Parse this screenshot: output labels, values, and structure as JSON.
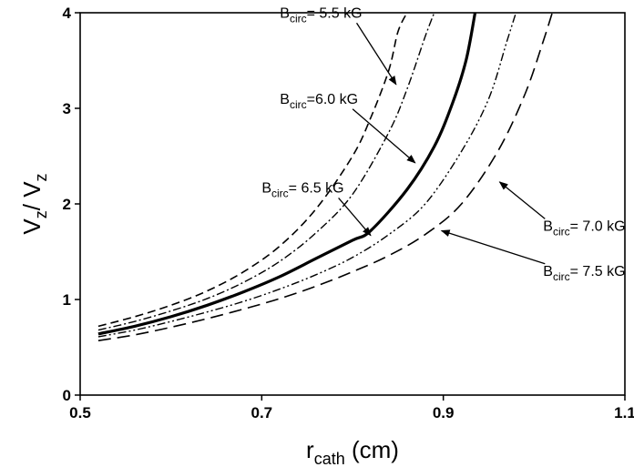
{
  "chart_data": {
    "type": "line",
    "title": "",
    "xlabel": {
      "main": "r",
      "sub": "cath",
      "unit": "(cm)"
    },
    "ylabel": {
      "main": "V",
      "sub1": "z",
      "slash": "/ V",
      "sub2": "z"
    },
    "xlim": [
      0.5,
      1.1
    ],
    "ylim": [
      0,
      4
    ],
    "x_ticks": [
      0.5,
      0.7,
      0.9,
      1.1
    ],
    "y_ticks": [
      0,
      1,
      2,
      3,
      4
    ],
    "x_tick_labels": [
      "0.5",
      "0.7",
      "0.9",
      "1.1"
    ],
    "y_tick_labels": [
      "0",
      "1",
      "2",
      "3",
      "4"
    ],
    "grid": false,
    "legend": "none",
    "series": [
      {
        "name": "Bcirc= 5.5 kG",
        "label": {
          "prefix": "B",
          "sub": "circ",
          "suffix": "= 5.5 kG"
        },
        "style": "dashed",
        "x": [
          0.52,
          0.56,
          0.6,
          0.64,
          0.68,
          0.72,
          0.76,
          0.8,
          0.82,
          0.84,
          0.85,
          0.86
        ],
        "y": [
          0.72,
          0.82,
          0.94,
          1.09,
          1.29,
          1.56,
          1.95,
          2.5,
          2.9,
          3.4,
          3.8,
          4.0
        ]
      },
      {
        "name": "Bcirc=6.0 kG",
        "label": {
          "prefix": "B",
          "sub": "circ",
          "suffix": "=6.0 kG"
        },
        "style": "dashdot",
        "x": [
          0.52,
          0.56,
          0.6,
          0.64,
          0.68,
          0.72,
          0.76,
          0.8,
          0.84,
          0.86,
          0.88,
          0.89
        ],
        "y": [
          0.68,
          0.77,
          0.88,
          1.01,
          1.18,
          1.4,
          1.7,
          2.1,
          2.75,
          3.2,
          3.75,
          4.0
        ]
      },
      {
        "name": "Bcirc= 6.5 kG",
        "label": {
          "prefix": "B",
          "sub": "circ",
          "suffix": "= 6.5 kG"
        },
        "style": "solid",
        "x": [
          0.52,
          0.56,
          0.6,
          0.64,
          0.68,
          0.72,
          0.76,
          0.8,
          0.82,
          0.86,
          0.89,
          0.91,
          0.925,
          0.935
        ],
        "y": [
          0.64,
          0.72,
          0.82,
          0.94,
          1.08,
          1.24,
          1.43,
          1.62,
          1.72,
          2.15,
          2.6,
          3.05,
          3.5,
          4.0
        ]
      },
      {
        "name": "Bcirc= 7.5 kG",
        "label": {
          "prefix": "B",
          "sub": "circ",
          "suffix": "= 7.5 kG"
        },
        "style": "dashdotdot",
        "x": [
          0.52,
          0.56,
          0.6,
          0.64,
          0.68,
          0.72,
          0.76,
          0.8,
          0.84,
          0.88,
          0.92,
          0.95,
          0.97,
          0.98
        ],
        "y": [
          0.61,
          0.68,
          0.77,
          0.87,
          0.98,
          1.11,
          1.26,
          1.44,
          1.68,
          2.0,
          2.55,
          3.1,
          3.7,
          4.0
        ]
      },
      {
        "name": "Bcirc= 7.0 kG",
        "label": {
          "prefix": "B",
          "sub": "circ",
          "suffix": "= 7.0 kG"
        },
        "style": "longdash",
        "x": [
          0.52,
          0.56,
          0.6,
          0.64,
          0.68,
          0.72,
          0.76,
          0.8,
          0.84,
          0.88,
          0.92,
          0.96,
          0.99,
          1.01,
          1.02
        ],
        "y": [
          0.57,
          0.63,
          0.71,
          0.8,
          0.9,
          1.01,
          1.14,
          1.29,
          1.46,
          1.68,
          2.0,
          2.55,
          3.15,
          3.7,
          4.0
        ]
      }
    ],
    "annotations": [
      {
        "series": 0,
        "label_at": [
          0.72,
          3.95
        ],
        "arrow_to": [
          0.848,
          3.25
        ]
      },
      {
        "series": 1,
        "label_at": [
          0.72,
          3.05
        ],
        "arrow_to": [
          0.869,
          2.43
        ]
      },
      {
        "series": 2,
        "label_at": [
          0.7,
          2.12
        ],
        "arrow_to": [
          0.82,
          1.67
        ]
      },
      {
        "series": 4,
        "label_at": [
          1.01,
          1.72
        ],
        "arrow_to": [
          0.962,
          2.23
        ]
      },
      {
        "series": 3,
        "label_at": [
          1.01,
          1.25
        ],
        "arrow_to": [
          0.898,
          1.72
        ]
      }
    ]
  }
}
